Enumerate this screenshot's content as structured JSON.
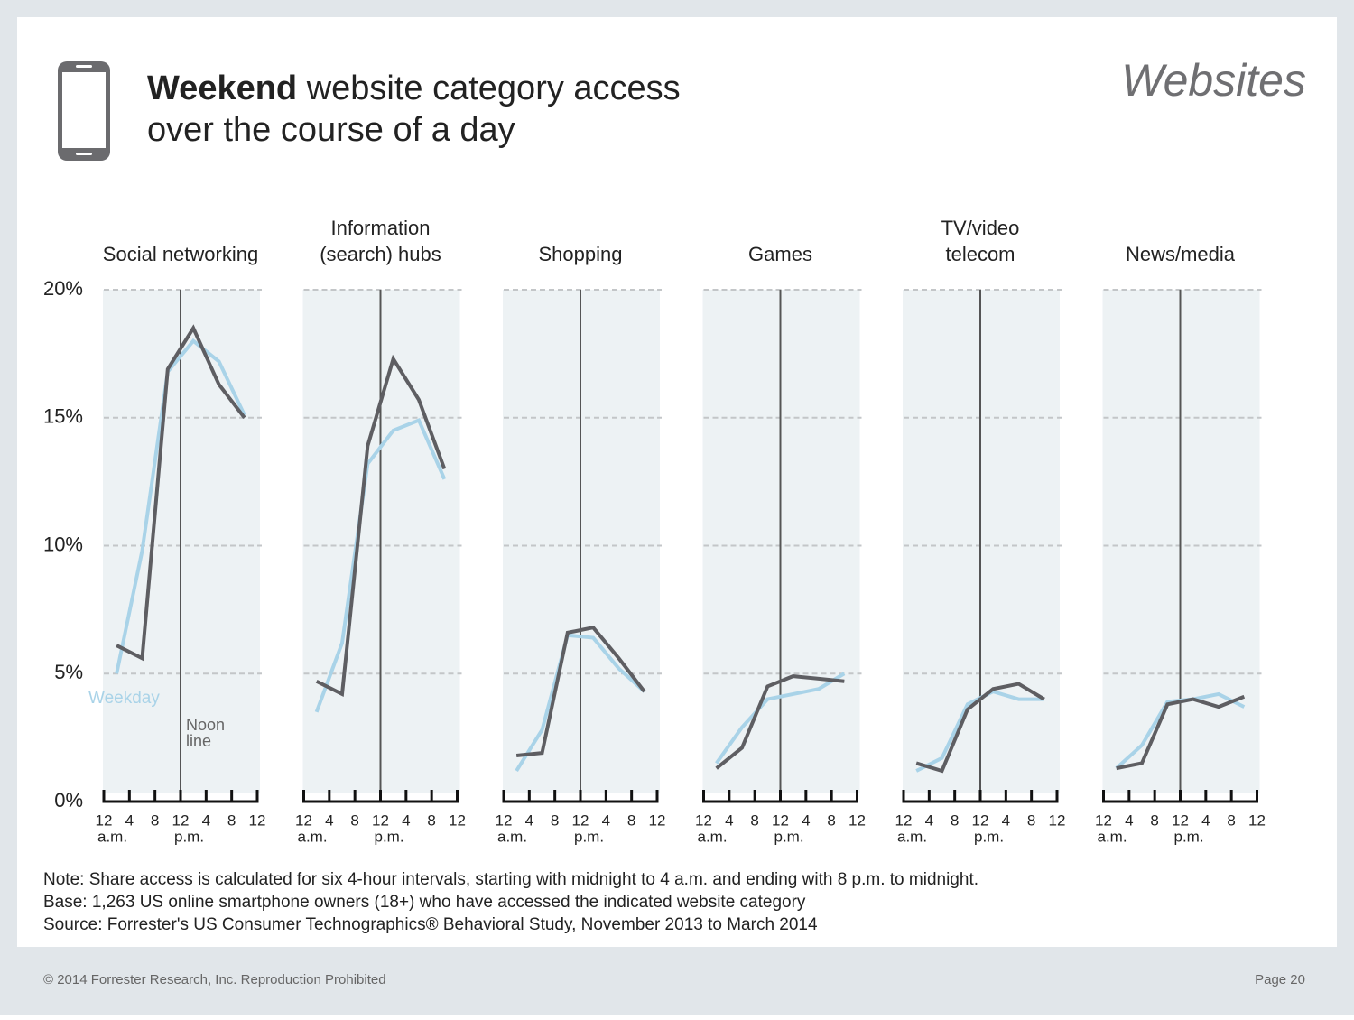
{
  "header": {
    "title_bold": "Weekend",
    "title_line1": " website category access",
    "title_line2": "over the course of a day",
    "section": "Websites"
  },
  "chart_data": [
    {
      "type": "line",
      "title": [
        "Social networking"
      ],
      "xlim": [
        0,
        24
      ],
      "ylim": [
        0,
        20
      ],
      "xticks": [
        {
          "value": 0,
          "label": "12"
        },
        4,
        8,
        {
          "value": 12,
          "label": "12"
        },
        {
          "value": 16,
          "label": "4"
        },
        {
          "value": 20,
          "label": "8"
        },
        {
          "value": 24,
          "label": "12"
        }
      ],
      "x_period_labels": [
        {
          "value": 0,
          "label": "a.m."
        },
        {
          "value": 12,
          "label": "p.m."
        }
      ],
      "yticks": [
        {
          "value": 0,
          "label": "0%"
        },
        {
          "value": 5,
          "label": "5%"
        },
        {
          "value": 10,
          "label": "10%"
        },
        {
          "value": 15,
          "label": "15%"
        },
        {
          "value": 20,
          "label": "20%"
        }
      ],
      "grid": true,
      "vline": 12,
      "vline_annotation": [
        "Noon",
        "line"
      ],
      "x": [
        2,
        6,
        10,
        14,
        18,
        22
      ],
      "series": [
        {
          "name": "Weekday",
          "color": "#a9d3e8",
          "values": [
            5.0,
            9.8,
            16.8,
            18.0,
            17.2,
            15.1
          ]
        },
        {
          "color": "#5e5e62",
          "values": [
            6.1,
            5.6,
            16.9,
            18.5,
            16.3,
            15.0
          ]
        }
      ]
    },
    {
      "type": "line",
      "title": [
        "Information",
        "(search) hubs"
      ],
      "xlim": [
        0,
        24
      ],
      "ylim": [
        0,
        20
      ],
      "xticks": [
        {
          "value": 0,
          "label": "12"
        },
        4,
        8,
        {
          "value": 12,
          "label": "12"
        },
        {
          "value": 16,
          "label": "4"
        },
        {
          "value": 20,
          "label": "8"
        },
        {
          "value": 24,
          "label": "12"
        }
      ],
      "x_period_labels": [
        {
          "value": 0,
          "label": "a.m."
        },
        {
          "value": 12,
          "label": "p.m."
        }
      ],
      "grid": true,
      "vline": 12,
      "x": [
        2,
        6,
        10,
        14,
        18,
        22
      ],
      "series": [
        {
          "color": "#a9d3e8",
          "values": [
            3.5,
            6.2,
            13.2,
            14.5,
            14.9,
            12.6
          ]
        },
        {
          "color": "#5e5e62",
          "values": [
            4.7,
            4.2,
            13.9,
            17.3,
            15.7,
            13.0
          ]
        }
      ]
    },
    {
      "type": "line",
      "title": [
        "Shopping"
      ],
      "xlim": [
        0,
        24
      ],
      "ylim": [
        0,
        20
      ],
      "xticks": [
        {
          "value": 0,
          "label": "12"
        },
        4,
        8,
        {
          "value": 12,
          "label": "12"
        },
        {
          "value": 16,
          "label": "4"
        },
        {
          "value": 20,
          "label": "8"
        },
        {
          "value": 24,
          "label": "12"
        }
      ],
      "x_period_labels": [
        {
          "value": 0,
          "label": "a.m."
        },
        {
          "value": 12,
          "label": "p.m."
        }
      ],
      "grid": true,
      "vline": 12,
      "x": [
        2,
        6,
        10,
        14,
        18,
        22
      ],
      "series": [
        {
          "color": "#a9d3e8",
          "values": [
            1.2,
            2.8,
            6.5,
            6.4,
            5.2,
            4.3
          ]
        },
        {
          "color": "#5e5e62",
          "values": [
            1.8,
            1.9,
            6.6,
            6.8,
            5.6,
            4.3
          ]
        }
      ]
    },
    {
      "type": "line",
      "title": [
        "Games"
      ],
      "xlim": [
        0,
        24
      ],
      "ylim": [
        0,
        20
      ],
      "xticks": [
        {
          "value": 0,
          "label": "12"
        },
        4,
        8,
        {
          "value": 12,
          "label": "12"
        },
        {
          "value": 16,
          "label": "4"
        },
        {
          "value": 20,
          "label": "8"
        },
        {
          "value": 24,
          "label": "12"
        }
      ],
      "x_period_labels": [
        {
          "value": 0,
          "label": "a.m."
        },
        {
          "value": 12,
          "label": "p.m."
        }
      ],
      "grid": true,
      "vline": 12,
      "x": [
        2,
        6,
        10,
        14,
        18,
        22
      ],
      "series": [
        {
          "color": "#a9d3e8",
          "values": [
            1.5,
            2.9,
            4.0,
            4.2,
            4.4,
            5.0
          ]
        },
        {
          "color": "#5e5e62",
          "values": [
            1.3,
            2.1,
            4.5,
            4.9,
            4.8,
            4.7
          ]
        }
      ]
    },
    {
      "type": "line",
      "title": [
        "TV/video",
        "telecom"
      ],
      "xlim": [
        0,
        24
      ],
      "ylim": [
        0,
        20
      ],
      "xticks": [
        {
          "value": 0,
          "label": "12"
        },
        4,
        8,
        {
          "value": 12,
          "label": "12"
        },
        {
          "value": 16,
          "label": "4"
        },
        {
          "value": 20,
          "label": "8"
        },
        {
          "value": 24,
          "label": "12"
        }
      ],
      "x_period_labels": [
        {
          "value": 0,
          "label": "a.m."
        },
        {
          "value": 12,
          "label": "p.m."
        }
      ],
      "grid": true,
      "vline": 12,
      "x": [
        2,
        6,
        10,
        14,
        18,
        22
      ],
      "series": [
        {
          "color": "#a9d3e8",
          "values": [
            1.2,
            1.7,
            3.8,
            4.3,
            4.0,
            4.0
          ]
        },
        {
          "color": "#5e5e62",
          "values": [
            1.5,
            1.2,
            3.6,
            4.4,
            4.6,
            4.0
          ]
        }
      ]
    },
    {
      "type": "line",
      "title": [
        "News/media"
      ],
      "xlim": [
        0,
        24
      ],
      "ylim": [
        0,
        20
      ],
      "xticks": [
        {
          "value": 0,
          "label": "12"
        },
        4,
        8,
        {
          "value": 12,
          "label": "12"
        },
        {
          "value": 16,
          "label": "4"
        },
        {
          "value": 20,
          "label": "8"
        },
        {
          "value": 24,
          "label": "12"
        }
      ],
      "x_period_labels": [
        {
          "value": 0,
          "label": "a.m."
        },
        {
          "value": 12,
          "label": "p.m."
        }
      ],
      "grid": true,
      "vline": 12,
      "x": [
        2,
        6,
        10,
        14,
        18,
        22
      ],
      "series": [
        {
          "color": "#a9d3e8",
          "values": [
            1.3,
            2.2,
            3.9,
            4.0,
            4.2,
            3.7
          ]
        },
        {
          "color": "#5e5e62",
          "values": [
            1.3,
            1.5,
            3.8,
            4.0,
            3.7,
            4.1
          ]
        }
      ]
    }
  ],
  "notes": [
    "Note: Share access is calculated for six 4-hour intervals, starting with midnight to 4 a.m. and ending with 8 p.m. to midnight.",
    "Base: 1,263 US online smartphone owners (18+) who have accessed the indicated website category",
    "Source: Forrester's US Consumer Technographics® Behavioral Study, November 2013 to March 2014"
  ],
  "footer": {
    "copyright": "© 2014 Forrester Research, Inc. Reproduction Prohibited",
    "page": "Page 20"
  }
}
